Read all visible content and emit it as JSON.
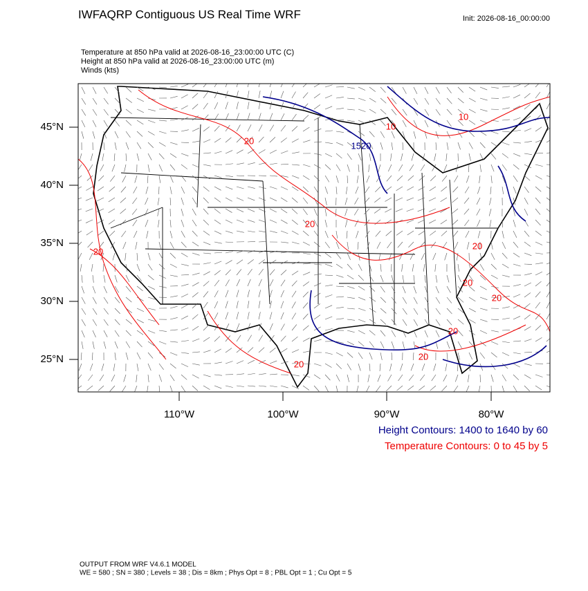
{
  "header": {
    "title": "IWFAQRP Contiguous US Real Time WRF",
    "init": "Init: 2026-08-16_00:00:00"
  },
  "fields": [
    "Temperature at 850 hPa valid at 2026-08-16_23:00:00 UTC   (C)",
    "Height at 850 hPa valid at 2026-08-16_23:00:00 UTC   (m)",
    "Winds   (kts)"
  ],
  "map": {
    "lat_labels": [
      "45°N",
      "40°N",
      "35°N",
      "30°N",
      "25°N"
    ],
    "lon_labels": [
      "110°W",
      "100°W",
      "90°W",
      "80°W"
    ],
    "contour_labels": [
      "20",
      "20",
      "20",
      "20",
      "20",
      "20",
      "20",
      "20",
      "20",
      "10",
      "10",
      "1520"
    ]
  },
  "legend": [
    "Height Contours: 1400 to 1640 by 60",
    "Temperature Contours: 0 to 45 by 5"
  ],
  "footer": [
    "OUTPUT FROM WRF V4.6.1 MODEL",
    "WE = 580 ; SN = 380 ; Levels = 38 ; Dis = 8km ; Phys Opt = 8 ; PBL Opt = 1 ; Cu Opt = 5"
  ]
}
